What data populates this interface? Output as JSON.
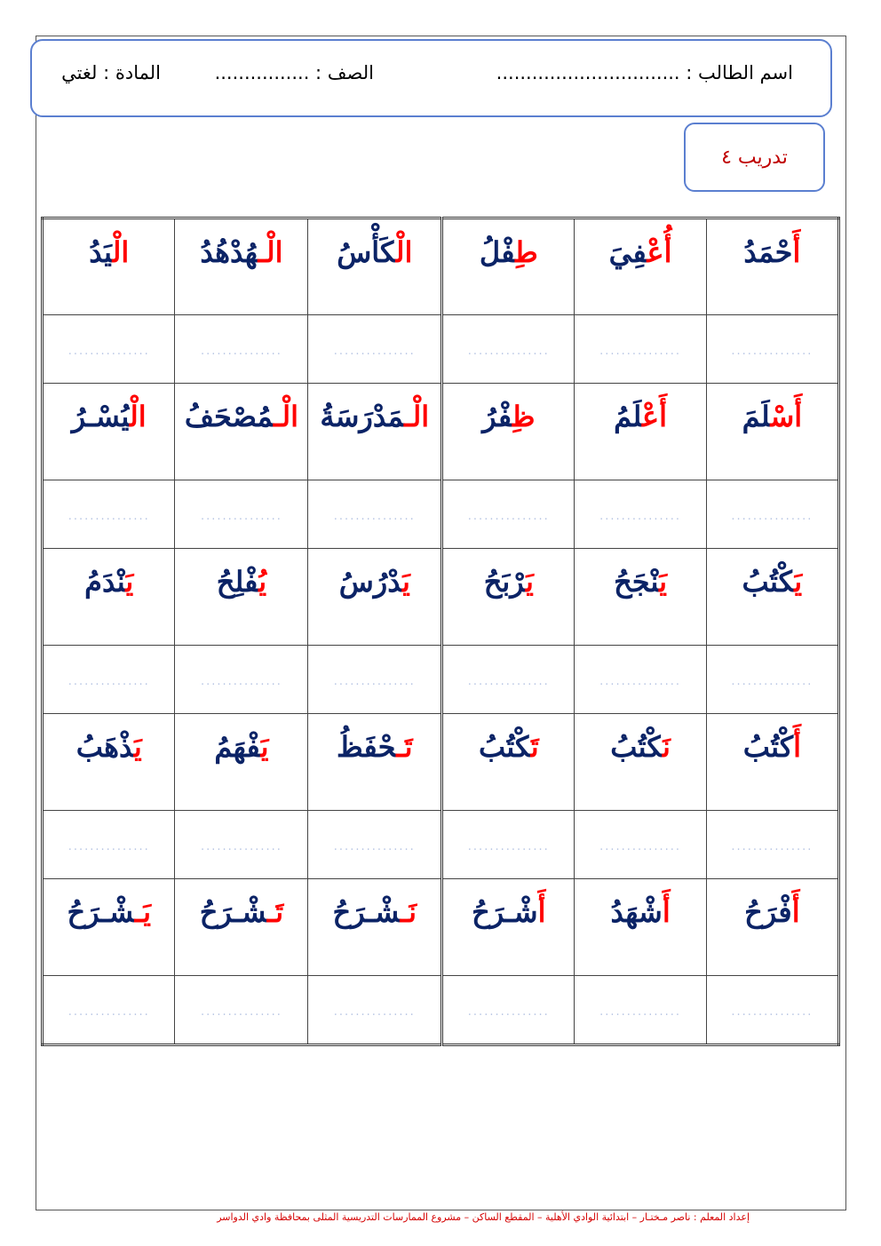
{
  "header": {
    "student_name": "اسم الطالب : ...............................",
    "class": "الصف : ................",
    "subject": "المادة : لغتي"
  },
  "exercise_title": "تدريب ٤",
  "colors": {
    "word": "#0b2366",
    "accent": "#ff0000",
    "border": "#5b7fd0",
    "footer": "#d40000"
  },
  "answer_placeholder": "...............",
  "rows": [
    [
      {
        "a": "أَ",
        "r": "حْمَدُ"
      },
      {
        "a": "أُعْ",
        "r": "فِيَ"
      },
      {
        "a": "طِ",
        "r": "فْلُ"
      },
      {
        "a": "الْ",
        "r": "كَأْسُ"
      },
      {
        "a": "الْـ",
        "r": "هُدْهُدُ"
      },
      {
        "a": "الْ",
        "r": "يَدُ"
      }
    ],
    [
      {
        "a": "أَسْ",
        "r": "لَمَ"
      },
      {
        "a": "أَعْ",
        "r": "لَمُ"
      },
      {
        "a": "ظِ",
        "r": "فْرُ"
      },
      {
        "a": "الْـ",
        "r": "مَدْرَسَةُ"
      },
      {
        "a": "الْـ",
        "r": "مُصْحَفُ"
      },
      {
        "a": "الْ",
        "r": "يُسْـرُ"
      }
    ],
    [
      {
        "a": "يَ",
        "r": "كْتُبُ"
      },
      {
        "a": "يَ",
        "r": "نْجَحُ"
      },
      {
        "a": "يَ",
        "r": "رْبَحُ"
      },
      {
        "a": "يَ",
        "r": "دْرُسُ"
      },
      {
        "a": "يُ",
        "r": "فْلِحُ"
      },
      {
        "a": "يَ",
        "r": "نْدَمُ"
      }
    ],
    [
      {
        "a": "أَ",
        "r": "كْتُبُ"
      },
      {
        "a": "نَ",
        "r": "كْتُبُ"
      },
      {
        "a": "تَ",
        "r": "كْتُبُ"
      },
      {
        "a": "تَـ",
        "r": "حْفَظُ"
      },
      {
        "a": "يَ",
        "r": "فْهَمُ"
      },
      {
        "a": "يَ",
        "r": "ذْهَبُ"
      }
    ],
    [
      {
        "a": "أَ",
        "r": "فْرَحُ"
      },
      {
        "a": "أَ",
        "r": "شْهَدُ"
      },
      {
        "a": "أَ",
        "r": "شْـرَحُ"
      },
      {
        "a": "نَـ",
        "r": "شْـرَحُ"
      },
      {
        "a": "تَـ",
        "r": "شْـرَحُ"
      },
      {
        "a": "يَـ",
        "r": "شْـرَحُ"
      }
    ]
  ],
  "footer": "إعداد المعلم : ناصر مـختـار – ابتدائية الوادي الأهلية – المقطع الساكن – مشروع الممارسات التدريسية المثلى بمحافظة وادي الدواسر"
}
